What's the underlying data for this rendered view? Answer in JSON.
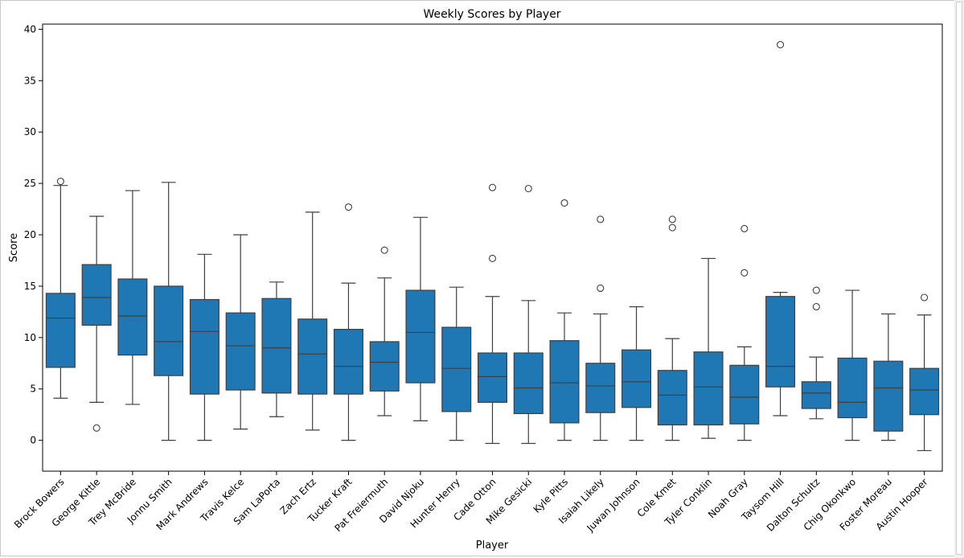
{
  "chart_data": {
    "type": "box",
    "title": "Weekly Scores by Player",
    "xlabel": "Player",
    "ylabel": "Score",
    "ylim": [
      -3,
      40.5
    ],
    "yticks": [
      0,
      5,
      10,
      15,
      20,
      25,
      30,
      35,
      40
    ],
    "grid": false,
    "box_color": "#1f77b4",
    "categories": [
      "Brock Bowers",
      "George Kittle",
      "Trey McBride",
      "Jonnu Smith",
      "Mark Andrews",
      "Travis Kelce",
      "Sam LaPorta",
      "Zach Ertz",
      "Tucker Kraft",
      "Pat Freiermuth",
      "David Njoku",
      "Hunter Henry",
      "Cade Otton",
      "Mike Gesicki",
      "Kyle Pitts",
      "Isaiah Likely",
      "Juwan Johnson",
      "Cole Kmet",
      "Tyler Conklin",
      "Noah Gray",
      "Taysom Hill",
      "Dalton Schultz",
      "Chig Okonkwo",
      "Foster Moreau",
      "Austin Hooper"
    ],
    "boxes": [
      {
        "whisker_low": 4.1,
        "q1": 7.1,
        "median": 11.9,
        "q3": 14.3,
        "whisker_high": 24.8,
        "outliers": [
          25.2
        ]
      },
      {
        "whisker_low": 3.7,
        "q1": 11.2,
        "median": 13.9,
        "q3": 17.1,
        "whisker_high": 21.8,
        "outliers": [
          1.2
        ]
      },
      {
        "whisker_low": 3.5,
        "q1": 8.3,
        "median": 12.1,
        "q3": 15.7,
        "whisker_high": 24.3,
        "outliers": []
      },
      {
        "whisker_low": 0.0,
        "q1": 6.3,
        "median": 9.6,
        "q3": 15.0,
        "whisker_high": 25.1,
        "outliers": []
      },
      {
        "whisker_low": 0.0,
        "q1": 4.5,
        "median": 10.6,
        "q3": 13.7,
        "whisker_high": 18.1,
        "outliers": []
      },
      {
        "whisker_low": 1.1,
        "q1": 4.9,
        "median": 9.2,
        "q3": 12.4,
        "whisker_high": 20.0,
        "outliers": []
      },
      {
        "whisker_low": 2.3,
        "q1": 4.6,
        "median": 9.0,
        "q3": 13.8,
        "whisker_high": 15.4,
        "outliers": []
      },
      {
        "whisker_low": 1.0,
        "q1": 4.5,
        "median": 8.4,
        "q3": 11.8,
        "whisker_high": 22.2,
        "outliers": []
      },
      {
        "whisker_low": 0.0,
        "q1": 4.5,
        "median": 7.2,
        "q3": 10.8,
        "whisker_high": 15.3,
        "outliers": [
          22.7
        ]
      },
      {
        "whisker_low": 2.4,
        "q1": 4.8,
        "median": 7.6,
        "q3": 9.6,
        "whisker_high": 15.8,
        "outliers": [
          18.5
        ]
      },
      {
        "whisker_low": 1.9,
        "q1": 5.6,
        "median": 10.5,
        "q3": 14.6,
        "whisker_high": 21.7,
        "outliers": []
      },
      {
        "whisker_low": 0.0,
        "q1": 2.8,
        "median": 7.0,
        "q3": 11.0,
        "whisker_high": 14.9,
        "outliers": []
      },
      {
        "whisker_low": -0.3,
        "q1": 3.7,
        "median": 6.2,
        "q3": 8.5,
        "whisker_high": 14.0,
        "outliers": [
          17.7,
          24.6
        ]
      },
      {
        "whisker_low": -0.3,
        "q1": 2.6,
        "median": 5.1,
        "q3": 8.5,
        "whisker_high": 13.6,
        "outliers": [
          24.5
        ]
      },
      {
        "whisker_low": 0.0,
        "q1": 1.7,
        "median": 5.6,
        "q3": 9.7,
        "whisker_high": 12.4,
        "outliers": [
          23.1
        ]
      },
      {
        "whisker_low": 0.0,
        "q1": 2.7,
        "median": 5.3,
        "q3": 7.5,
        "whisker_high": 12.3,
        "outliers": [
          14.8,
          21.5
        ]
      },
      {
        "whisker_low": 0.0,
        "q1": 3.2,
        "median": 5.7,
        "q3": 8.8,
        "whisker_high": 13.0,
        "outliers": []
      },
      {
        "whisker_low": 0.0,
        "q1": 1.5,
        "median": 4.4,
        "q3": 6.8,
        "whisker_high": 9.9,
        "outliers": [
          20.7,
          21.5
        ]
      },
      {
        "whisker_low": 0.2,
        "q1": 1.5,
        "median": 5.2,
        "q3": 8.6,
        "whisker_high": 17.7,
        "outliers": []
      },
      {
        "whisker_low": 0.0,
        "q1": 1.6,
        "median": 4.2,
        "q3": 7.3,
        "whisker_high": 9.1,
        "outliers": [
          16.3,
          20.6
        ]
      },
      {
        "whisker_low": 2.4,
        "q1": 5.2,
        "median": 7.2,
        "q3": 14.0,
        "whisker_high": 14.4,
        "outliers": [
          38.5
        ]
      },
      {
        "whisker_low": 2.1,
        "q1": 3.1,
        "median": 4.6,
        "q3": 5.7,
        "whisker_high": 8.1,
        "outliers": [
          13.0,
          14.6
        ]
      },
      {
        "whisker_low": 0.0,
        "q1": 2.2,
        "median": 3.7,
        "q3": 8.0,
        "whisker_high": 14.6,
        "outliers": []
      },
      {
        "whisker_low": 0.0,
        "q1": 0.9,
        "median": 5.1,
        "q3": 7.7,
        "whisker_high": 12.3,
        "outliers": []
      },
      {
        "whisker_low": -1.0,
        "q1": 2.5,
        "median": 4.9,
        "q3": 7.0,
        "whisker_high": 12.2,
        "outliers": [
          13.9
        ]
      }
    ]
  }
}
